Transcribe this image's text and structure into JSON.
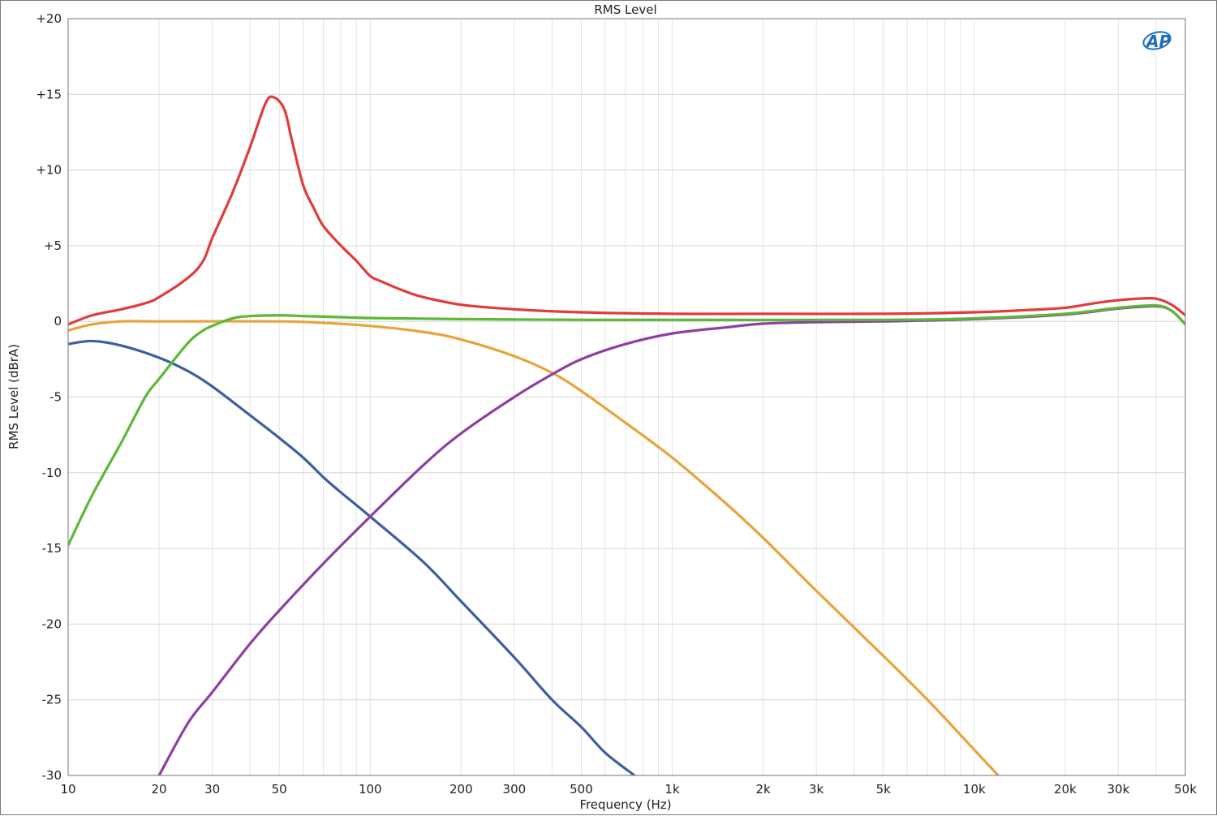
{
  "chart_data": {
    "type": "line",
    "title": "RMS Level",
    "xlabel": "Frequency (Hz)",
    "ylabel": "RMS Level (dBrA)",
    "x_scale": "log",
    "xlim": [
      10,
      50000
    ],
    "ylim": [
      -30,
      20
    ],
    "grid": true,
    "legend": "none",
    "x_ticks": [
      {
        "value": 10,
        "label": "10"
      },
      {
        "value": 20,
        "label": "20"
      },
      {
        "value": 30,
        "label": "30"
      },
      {
        "value": 50,
        "label": "50"
      },
      {
        "value": 100,
        "label": "100"
      },
      {
        "value": 200,
        "label": "200"
      },
      {
        "value": 300,
        "label": "300"
      },
      {
        "value": 500,
        "label": "500"
      },
      {
        "value": 1000,
        "label": "1k"
      },
      {
        "value": 2000,
        "label": "2k"
      },
      {
        "value": 3000,
        "label": "3k"
      },
      {
        "value": 5000,
        "label": "5k"
      },
      {
        "value": 10000,
        "label": "10k"
      },
      {
        "value": 20000,
        "label": "20k"
      },
      {
        "value": 30000,
        "label": "30k"
      },
      {
        "value": 50000,
        "label": "50k"
      }
    ],
    "y_ticks": [
      {
        "value": 20,
        "label": "+20"
      },
      {
        "value": 15,
        "label": "+15"
      },
      {
        "value": 10,
        "label": "+10"
      },
      {
        "value": 5,
        "label": "+5"
      },
      {
        "value": 0,
        "label": "0"
      },
      {
        "value": -5,
        "label": "-5"
      },
      {
        "value": -10,
        "label": "-10"
      },
      {
        "value": -15,
        "label": "-15"
      },
      {
        "value": -20,
        "label": "-20"
      },
      {
        "value": -25,
        "label": "-25"
      },
      {
        "value": -30,
        "label": "-30"
      }
    ],
    "series": [
      {
        "color": "#e03c3c",
        "points": [
          [
            10,
            -0.2
          ],
          [
            12,
            0.4
          ],
          [
            15,
            0.8
          ],
          [
            18,
            1.2
          ],
          [
            20,
            1.6
          ],
          [
            25,
            2.9
          ],
          [
            28,
            4
          ],
          [
            30,
            5.5
          ],
          [
            35,
            8.5
          ],
          [
            40,
            11.5
          ],
          [
            45,
            14.4
          ],
          [
            48,
            14.8
          ],
          [
            52,
            14
          ],
          [
            55,
            12
          ],
          [
            60,
            9
          ],
          [
            65,
            7.5
          ],
          [
            70,
            6.3
          ],
          [
            80,
            5
          ],
          [
            90,
            4
          ],
          [
            100,
            3
          ],
          [
            110,
            2.6
          ],
          [
            130,
            2
          ],
          [
            150,
            1.6
          ],
          [
            200,
            1.1
          ],
          [
            300,
            0.8
          ],
          [
            500,
            0.6
          ],
          [
            1000,
            0.5
          ],
          [
            2000,
            0.5
          ],
          [
            5000,
            0.5
          ],
          [
            10000,
            0.6
          ],
          [
            15000,
            0.75
          ],
          [
            20000,
            0.9
          ],
          [
            25000,
            1.2
          ],
          [
            30000,
            1.4
          ],
          [
            35000,
            1.5
          ],
          [
            40000,
            1.5
          ],
          [
            45000,
            1.1
          ],
          [
            50000,
            0.4
          ]
        ]
      },
      {
        "color": "#e9a33a",
        "points": [
          [
            10,
            -0.6
          ],
          [
            12,
            -0.2
          ],
          [
            15,
            0
          ],
          [
            20,
            0
          ],
          [
            50,
            0
          ],
          [
            70,
            -0.1
          ],
          [
            100,
            -0.3
          ],
          [
            150,
            -0.7
          ],
          [
            200,
            -1.2
          ],
          [
            300,
            -2.3
          ],
          [
            400,
            -3.4
          ],
          [
            500,
            -4.6
          ],
          [
            700,
            -6.7
          ],
          [
            1000,
            -9
          ],
          [
            1500,
            -12
          ],
          [
            2000,
            -14.3
          ],
          [
            3000,
            -17.8
          ],
          [
            5000,
            -22.1
          ],
          [
            7000,
            -25
          ],
          [
            10000,
            -28.3
          ],
          [
            12000,
            -30
          ]
        ]
      },
      {
        "color": "#3f5ea0",
        "points": [
          [
            10,
            -1.5
          ],
          [
            12,
            -1.3
          ],
          [
            15,
            -1.6
          ],
          [
            20,
            -2.4
          ],
          [
            25,
            -3.3
          ],
          [
            30,
            -4.3
          ],
          [
            40,
            -6.2
          ],
          [
            50,
            -7.7
          ],
          [
            60,
            -9
          ],
          [
            70,
            -10.3
          ],
          [
            80,
            -11.3
          ],
          [
            100,
            -12.9
          ],
          [
            150,
            -15.9
          ],
          [
            200,
            -18.5
          ],
          [
            300,
            -22.2
          ],
          [
            400,
            -25
          ],
          [
            500,
            -26.8
          ],
          [
            600,
            -28.5
          ],
          [
            750,
            -30
          ]
        ]
      },
      {
        "color": "#8e3fa0",
        "points": [
          [
            20,
            -30
          ],
          [
            25,
            -26.5
          ],
          [
            30,
            -24.5
          ],
          [
            40,
            -21.3
          ],
          [
            50,
            -19.1
          ],
          [
            70,
            -16
          ],
          [
            100,
            -12.9
          ],
          [
            150,
            -9.5
          ],
          [
            200,
            -7.4
          ],
          [
            300,
            -5
          ],
          [
            400,
            -3.5
          ],
          [
            500,
            -2.5
          ],
          [
            700,
            -1.5
          ],
          [
            1000,
            -0.8
          ],
          [
            1500,
            -0.4
          ],
          [
            2000,
            -0.15
          ],
          [
            3000,
            -0.05
          ],
          [
            5000,
            0
          ],
          [
            10000,
            0.15
          ],
          [
            20000,
            0.45
          ],
          [
            30000,
            0.85
          ],
          [
            40000,
            1
          ],
          [
            45000,
            0.7
          ],
          [
            50000,
            -0.2
          ]
        ]
      },
      {
        "color": "#5cb837",
        "points": [
          [
            10,
            -14.8
          ],
          [
            12,
            -11.5
          ],
          [
            15,
            -8
          ],
          [
            18,
            -5
          ],
          [
            20,
            -3.8
          ],
          [
            25,
            -1.4
          ],
          [
            28,
            -0.6
          ],
          [
            30,
            -0.3
          ],
          [
            35,
            0.2
          ],
          [
            40,
            0.35
          ],
          [
            50,
            0.4
          ],
          [
            60,
            0.35
          ],
          [
            80,
            0.28
          ],
          [
            100,
            0.22
          ],
          [
            200,
            0.15
          ],
          [
            500,
            0.1
          ],
          [
            1000,
            0.1
          ],
          [
            5000,
            0.1
          ],
          [
            10000,
            0.2
          ],
          [
            20000,
            0.5
          ],
          [
            30000,
            0.9
          ],
          [
            40000,
            1.05
          ],
          [
            45000,
            0.7
          ],
          [
            50000,
            -0.2
          ]
        ]
      }
    ]
  },
  "logo": {
    "text": "AP",
    "color": "#1a6fb8"
  }
}
